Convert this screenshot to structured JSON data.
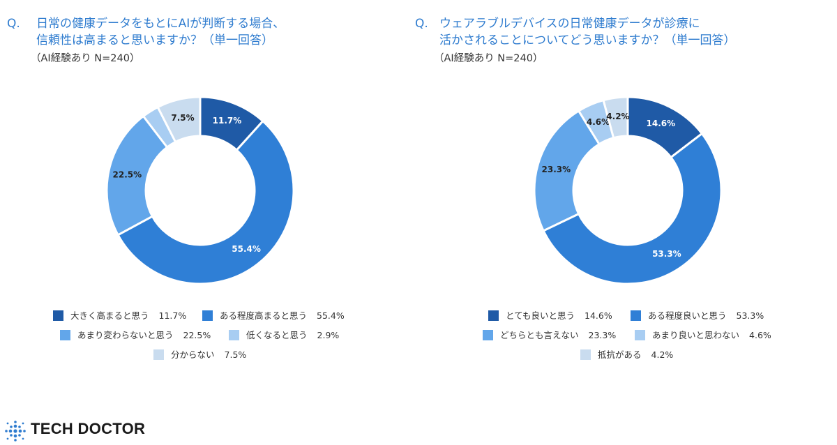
{
  "chart_data": [
    {
      "type": "pie",
      "style": "donut",
      "title_prefix": "Q.",
      "title_lines": [
        "日常の健康データをもとにAIが判断する場合、",
        "信頼性は高まると思いますか？（単一回答）"
      ],
      "subtitle": "（AI経験あり N=240）",
      "legend_position": "bottom",
      "slices": [
        {
          "label": "大きく高まると思う",
          "value": 11.7,
          "value_label": "11.7%",
          "legend_value": "11.7%",
          "color": "#1f5aa6",
          "label_color": "#ffffff"
        },
        {
          "label": "ある程度高まると思う",
          "value": 55.4,
          "value_label": "55.4%",
          "legend_value": "55.4%",
          "color": "#2f7fd6",
          "label_color": "#ffffff"
        },
        {
          "label": "あまり変わらないと思う",
          "value": 22.5,
          "value_label": "22.5%",
          "legend_value": "22.5%",
          "color": "#62a6ea",
          "label_color": "#222222"
        },
        {
          "label": "低くなると思う",
          "value": 2.9,
          "value_label": "",
          "legend_value": "2.9%",
          "color": "#a8cdf2",
          "label_color": "#222222"
        },
        {
          "label": "分からない",
          "value": 7.5,
          "value_label": "7.5%",
          "legend_value": "7.5%",
          "color": "#c9dcef",
          "label_color": "#222222"
        }
      ]
    },
    {
      "type": "pie",
      "style": "donut",
      "title_prefix": "Q.",
      "title_lines": [
        "ウェアラブルデバイスの日常健康データが診療に",
        "活かされることについてどう思いますか？（単一回答）"
      ],
      "subtitle": "（AI経験あり N=240）",
      "legend_position": "bottom",
      "slices": [
        {
          "label": "とても良いと思う",
          "value": 14.6,
          "value_label": "14.6%",
          "legend_value": "14.6%",
          "color": "#1f5aa6",
          "label_color": "#ffffff"
        },
        {
          "label": "ある程度良いと思う",
          "value": 53.3,
          "value_label": "53.3%",
          "legend_value": "53.3%",
          "color": "#2f7fd6",
          "label_color": "#ffffff"
        },
        {
          "label": "どちらとも言えない",
          "value": 23.3,
          "value_label": "23.3%",
          "legend_value": "23.3%",
          "color": "#62a6ea",
          "label_color": "#222222"
        },
        {
          "label": "あまり良いと思わない",
          "value": 4.6,
          "value_label": "4.6%",
          "legend_value": "4.6%",
          "color": "#a8cdf2",
          "label_color": "#222222"
        },
        {
          "label": "抵抗がある",
          "value": 4.2,
          "value_label": "4.2%",
          "legend_value": "4.2%",
          "color": "#c9dcef",
          "label_color": "#222222"
        }
      ]
    }
  ],
  "brand": {
    "name": "TECH DOCTOR",
    "logo_icon": "dot-cross-logo-icon",
    "logo_color": "#2f7ccf"
  }
}
